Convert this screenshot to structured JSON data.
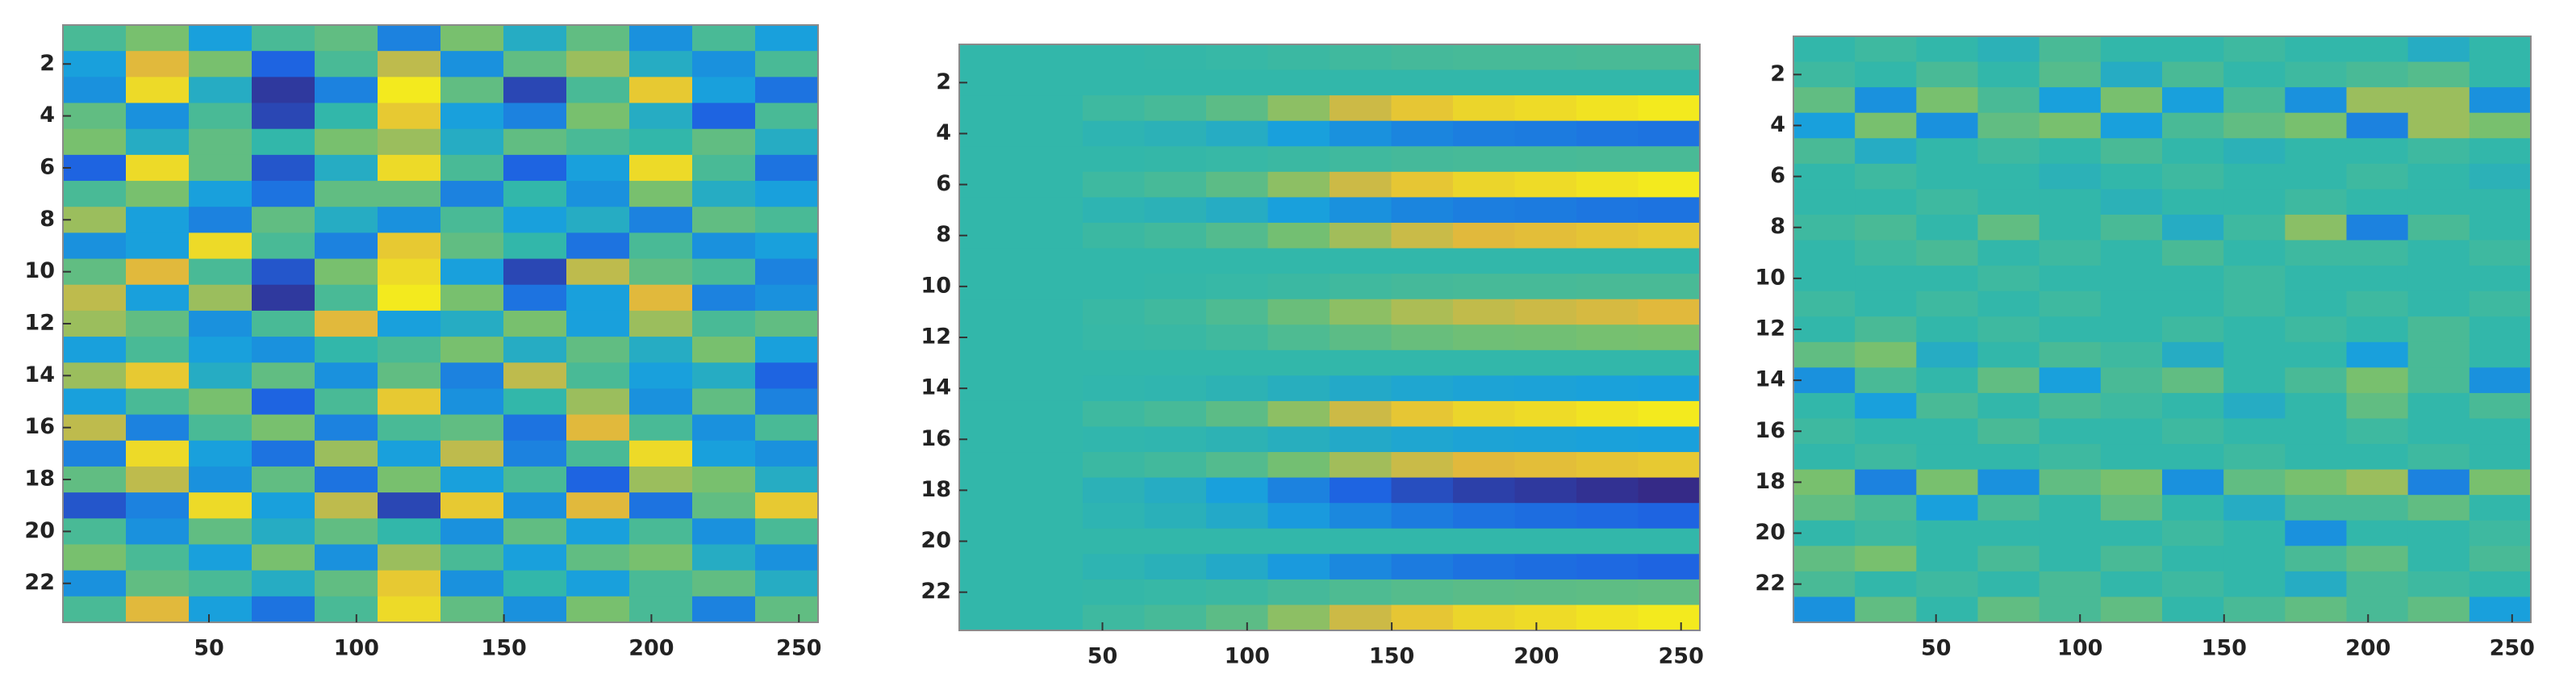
{
  "chart_data": [
    {
      "type": "heatmap",
      "xlim": [
        0.5,
        256.5
      ],
      "ylim": [
        23.5,
        0.5
      ],
      "xticks": [
        50,
        100,
        150,
        200,
        250
      ],
      "yticks": [
        2,
        4,
        6,
        8,
        10,
        12,
        14,
        16,
        18,
        20,
        22
      ],
      "zlim": [
        -1,
        1
      ],
      "z": [
        [
          0.1,
          0.3,
          -0.2,
          0.1,
          0.2,
          -0.4,
          0.3,
          -0.1,
          0.2,
          -0.3,
          0.1,
          -0.2
        ],
        [
          -0.2,
          0.6,
          0.3,
          -0.6,
          0.1,
          0.5,
          -0.3,
          0.2,
          0.4,
          -0.1,
          -0.3,
          0.1
        ],
        [
          -0.3,
          0.8,
          -0.1,
          -0.9,
          -0.4,
          0.9,
          0.2,
          -0.8,
          0.1,
          0.7,
          -0.2,
          -0.5
        ],
        [
          0.2,
          -0.3,
          0.1,
          -0.8,
          0.0,
          0.7,
          -0.2,
          -0.4,
          0.3,
          -0.1,
          -0.6,
          0.1
        ],
        [
          0.3,
          -0.1,
          0.2,
          0.0,
          0.3,
          0.4,
          -0.1,
          0.2,
          0.1,
          0.0,
          0.2,
          -0.1
        ],
        [
          -0.6,
          0.8,
          0.2,
          -0.7,
          -0.1,
          0.8,
          0.1,
          -0.6,
          -0.2,
          0.8,
          0.1,
          -0.5
        ],
        [
          0.1,
          0.3,
          -0.2,
          -0.5,
          0.2,
          0.2,
          -0.4,
          0.0,
          -0.3,
          0.3,
          -0.1,
          -0.2
        ],
        [
          0.4,
          -0.2,
          -0.4,
          0.2,
          -0.1,
          -0.3,
          0.1,
          -0.2,
          -0.1,
          -0.4,
          0.2,
          0.1
        ],
        [
          -0.3,
          -0.2,
          0.8,
          0.1,
          -0.4,
          0.7,
          0.2,
          0.0,
          -0.5,
          0.1,
          -0.3,
          -0.2
        ],
        [
          0.2,
          0.6,
          0.1,
          -0.7,
          0.3,
          0.8,
          -0.2,
          -0.8,
          0.5,
          0.2,
          0.1,
          -0.4
        ],
        [
          0.5,
          -0.2,
          0.4,
          -0.9,
          0.1,
          0.9,
          0.3,
          -0.5,
          -0.2,
          0.6,
          -0.4,
          -0.3
        ],
        [
          0.4,
          0.2,
          -0.3,
          0.1,
          0.6,
          -0.2,
          -0.1,
          0.3,
          -0.2,
          0.4,
          0.1,
          0.2
        ],
        [
          -0.2,
          0.1,
          -0.2,
          -0.3,
          0.0,
          0.1,
          0.3,
          -0.1,
          0.2,
          -0.1,
          0.3,
          -0.2
        ],
        [
          0.4,
          0.7,
          -0.1,
          0.2,
          -0.3,
          0.2,
          -0.4,
          0.5,
          0.1,
          -0.2,
          -0.1,
          -0.6
        ],
        [
          -0.2,
          0.1,
          0.3,
          -0.6,
          0.1,
          0.7,
          -0.3,
          0.0,
          0.4,
          -0.3,
          0.2,
          -0.4
        ],
        [
          0.5,
          -0.4,
          0.1,
          0.3,
          -0.4,
          0.1,
          0.2,
          -0.5,
          0.6,
          0.1,
          -0.3,
          0.1
        ],
        [
          -0.4,
          0.8,
          -0.2,
          -0.5,
          0.4,
          -0.2,
          0.5,
          -0.4,
          0.1,
          0.8,
          -0.2,
          -0.3
        ],
        [
          0.2,
          0.5,
          -0.3,
          0.2,
          -0.5,
          0.3,
          -0.2,
          0.1,
          -0.6,
          0.4,
          0.3,
          -0.1
        ],
        [
          -0.7,
          -0.4,
          0.8,
          -0.2,
          0.5,
          -0.8,
          0.7,
          -0.3,
          0.6,
          -0.5,
          0.2,
          0.7
        ],
        [
          0.1,
          -0.3,
          0.2,
          -0.1,
          0.2,
          0.0,
          -0.3,
          0.2,
          -0.2,
          0.1,
          -0.3,
          0.1
        ],
        [
          0.3,
          0.1,
          -0.2,
          0.3,
          -0.3,
          0.4,
          0.1,
          -0.2,
          0.2,
          0.3,
          -0.1,
          -0.3
        ],
        [
          -0.3,
          0.2,
          0.1,
          -0.1,
          0.2,
          0.7,
          -0.3,
          0.0,
          -0.2,
          0.1,
          0.2,
          -0.1
        ],
        [
          0.1,
          0.6,
          -0.2,
          -0.5,
          0.1,
          0.8,
          0.2,
          -0.3,
          0.3,
          0.1,
          -0.4,
          0.2
        ]
      ]
    },
    {
      "type": "heatmap",
      "xlim": [
        0.5,
        256.5
      ],
      "ylim": [
        23.5,
        0.5
      ],
      "xticks": [
        50,
        100,
        150,
        200,
        250
      ],
      "yticks": [
        2,
        4,
        6,
        8,
        10,
        12,
        14,
        16,
        18,
        20,
        22
      ],
      "zlim": [
        -1,
        1
      ],
      "z": [
        [
          0,
          0,
          0,
          0.01,
          0.02,
          0.04,
          0.06,
          0.08,
          0.09,
          0.09,
          0.1,
          0.1
        ],
        [
          0,
          0,
          0,
          0,
          0,
          0,
          0,
          0,
          0,
          0,
          0,
          0
        ],
        [
          0,
          0,
          0.05,
          0.09,
          0.18,
          0.36,
          0.54,
          0.68,
          0.77,
          0.81,
          0.86,
          0.9
        ],
        [
          0,
          0,
          -0.03,
          -0.05,
          -0.1,
          -0.2,
          -0.3,
          -0.38,
          -0.43,
          -0.45,
          -0.48,
          -0.5
        ],
        [
          0,
          0,
          0,
          0.01,
          0.02,
          0.04,
          0.06,
          0.08,
          0.09,
          0.09,
          0.1,
          0.1
        ],
        [
          0,
          0,
          0.05,
          0.09,
          0.18,
          0.36,
          0.54,
          0.68,
          0.77,
          0.81,
          0.86,
          0.9
        ],
        [
          0,
          0,
          -0.03,
          -0.05,
          -0.1,
          -0.2,
          -0.3,
          -0.38,
          -0.43,
          -0.45,
          -0.48,
          -0.5
        ],
        [
          0,
          0,
          0.04,
          0.07,
          0.14,
          0.28,
          0.42,
          0.53,
          0.6,
          0.63,
          0.67,
          0.7
        ],
        [
          0,
          0,
          0,
          0,
          0,
          0,
          0,
          0,
          0,
          0,
          0,
          0
        ],
        [
          0,
          0,
          0,
          0.01,
          0.02,
          0.04,
          0.06,
          0.08,
          0.09,
          0.09,
          0.1,
          0.1
        ],
        [
          0,
          0,
          0.03,
          0.06,
          0.12,
          0.24,
          0.36,
          0.45,
          0.51,
          0.54,
          0.57,
          0.6
        ],
        [
          0,
          0,
          0.02,
          0.03,
          0.06,
          0.12,
          0.18,
          0.23,
          0.26,
          0.27,
          0.29,
          0.3
        ],
        [
          0,
          0,
          0,
          0,
          0,
          0,
          0,
          0,
          0,
          0,
          0,
          0
        ],
        [
          0,
          0,
          -0.01,
          -0.02,
          -0.04,
          -0.08,
          -0.12,
          -0.15,
          -0.17,
          -0.18,
          -0.19,
          -0.2
        ],
        [
          0,
          0,
          0.05,
          0.09,
          0.18,
          0.36,
          0.54,
          0.68,
          0.77,
          0.81,
          0.86,
          0.9
        ],
        [
          0,
          0,
          -0.01,
          -0.02,
          -0.04,
          -0.08,
          -0.12,
          -0.15,
          -0.17,
          -0.18,
          -0.19,
          -0.2
        ],
        [
          0,
          0,
          0.04,
          0.07,
          0.14,
          0.28,
          0.42,
          0.53,
          0.6,
          0.63,
          0.67,
          0.7
        ],
        [
          0,
          0,
          -0.05,
          -0.1,
          -0.2,
          -0.4,
          -0.6,
          -0.75,
          -0.85,
          -0.9,
          -0.95,
          -1
        ],
        [
          0,
          0,
          -0.03,
          -0.06,
          -0.12,
          -0.24,
          -0.36,
          -0.45,
          -0.51,
          -0.54,
          -0.57,
          -0.6
        ],
        [
          0,
          0,
          0,
          0,
          0,
          0,
          0,
          0,
          0,
          0,
          0,
          0
        ],
        [
          0,
          0,
          -0.03,
          -0.06,
          -0.12,
          -0.24,
          -0.36,
          -0.45,
          -0.51,
          -0.54,
          -0.57,
          -0.6
        ],
        [
          0,
          0,
          0.01,
          0.02,
          0.04,
          0.08,
          0.12,
          0.15,
          0.17,
          0.18,
          0.19,
          0.2
        ],
        [
          0,
          0,
          0.05,
          0.09,
          0.18,
          0.36,
          0.54,
          0.68,
          0.77,
          0.81,
          0.86,
          0.9
        ]
      ]
    },
    {
      "type": "heatmap",
      "xlim": [
        0.5,
        256.5
      ],
      "ylim": [
        23.5,
        0.5
      ],
      "xticks": [
        50,
        100,
        150,
        200,
        250
      ],
      "yticks": [
        2,
        4,
        6,
        8,
        10,
        12,
        14,
        16,
        18,
        20,
        22
      ],
      "zlim": [
        -1,
        1
      ],
      "z": [
        [
          0,
          0.05,
          0,
          -0.05,
          0.1,
          0,
          0,
          0.05,
          0,
          0,
          -0.1,
          0
        ],
        [
          0.05,
          0,
          0.1,
          0,
          0.15,
          -0.1,
          0.1,
          0,
          0.05,
          0.1,
          0.15,
          0
        ],
        [
          0.2,
          -0.3,
          0.3,
          0.1,
          -0.2,
          0.3,
          -0.2,
          0.1,
          -0.3,
          0.4,
          0.4,
          -0.3
        ],
        [
          -0.2,
          0.3,
          -0.3,
          0.2,
          0.3,
          -0.2,
          0.1,
          0.2,
          0.3,
          -0.4,
          0.4,
          0.3
        ],
        [
          0.1,
          -0.1,
          0,
          0.05,
          0,
          0.1,
          0,
          -0.05,
          0,
          0,
          0.05,
          0
        ],
        [
          0,
          0.05,
          0,
          0,
          -0.05,
          0,
          0.05,
          0,
          0,
          0.05,
          0,
          -0.05
        ],
        [
          0,
          0,
          0.05,
          0,
          0,
          -0.05,
          0,
          0,
          0.05,
          0,
          0,
          0
        ],
        [
          0.05,
          0.1,
          0,
          0.2,
          0,
          0.1,
          -0.1,
          0.05,
          0.35,
          -0.4,
          0.1,
          0
        ],
        [
          0,
          0.05,
          0.1,
          0,
          0.05,
          0,
          0.1,
          0,
          0.05,
          0.05,
          0,
          0.05
        ],
        [
          0,
          0,
          0,
          0.05,
          0,
          0,
          0,
          0.05,
          0,
          0,
          0,
          0
        ],
        [
          0.05,
          0,
          0.05,
          0,
          0.05,
          0,
          0,
          0.05,
          0,
          0.05,
          0,
          0.05
        ],
        [
          0,
          0.1,
          0,
          0.05,
          0,
          0,
          0.05,
          0,
          0.05,
          0,
          0.1,
          0
        ],
        [
          0.2,
          0.3,
          -0.1,
          0,
          0.1,
          0.05,
          -0.1,
          0,
          0,
          -0.2,
          0.1,
          0
        ],
        [
          -0.3,
          0.1,
          0,
          0.2,
          -0.2,
          0.1,
          0.2,
          0,
          0.1,
          0.3,
          0.1,
          -0.3
        ],
        [
          0,
          -0.2,
          0.1,
          0,
          0.1,
          0.05,
          0,
          -0.1,
          0,
          0.2,
          0,
          0.1
        ],
        [
          0.05,
          0,
          0,
          0.1,
          0,
          0,
          0.05,
          0,
          0,
          0.05,
          0,
          0
        ],
        [
          0,
          0.05,
          0,
          0,
          0.05,
          0,
          0,
          0.05,
          0,
          0,
          0.05,
          0
        ],
        [
          0.3,
          -0.4,
          0.3,
          -0.3,
          0.2,
          0.3,
          -0.3,
          0.2,
          0.3,
          0.4,
          -0.4,
          0.3
        ],
        [
          0.2,
          0.1,
          -0.2,
          0.1,
          0,
          0.2,
          0,
          -0.1,
          0.1,
          0.1,
          0.2,
          0
        ],
        [
          0,
          0.05,
          0,
          0,
          0,
          0,
          0.05,
          0,
          -0.3,
          0,
          0,
          0.05
        ],
        [
          0.2,
          0.3,
          0,
          0.1,
          0,
          0.1,
          0,
          0,
          0.1,
          0.2,
          0,
          0.1
        ],
        [
          0.1,
          0,
          0.05,
          0,
          0.1,
          0,
          0.05,
          0,
          -0.1,
          0.1,
          0.05,
          0
        ],
        [
          -0.3,
          0.2,
          0,
          0.2,
          0.1,
          0.2,
          0,
          0.1,
          0.2,
          0.1,
          0.2,
          -0.2
        ]
      ]
    }
  ]
}
